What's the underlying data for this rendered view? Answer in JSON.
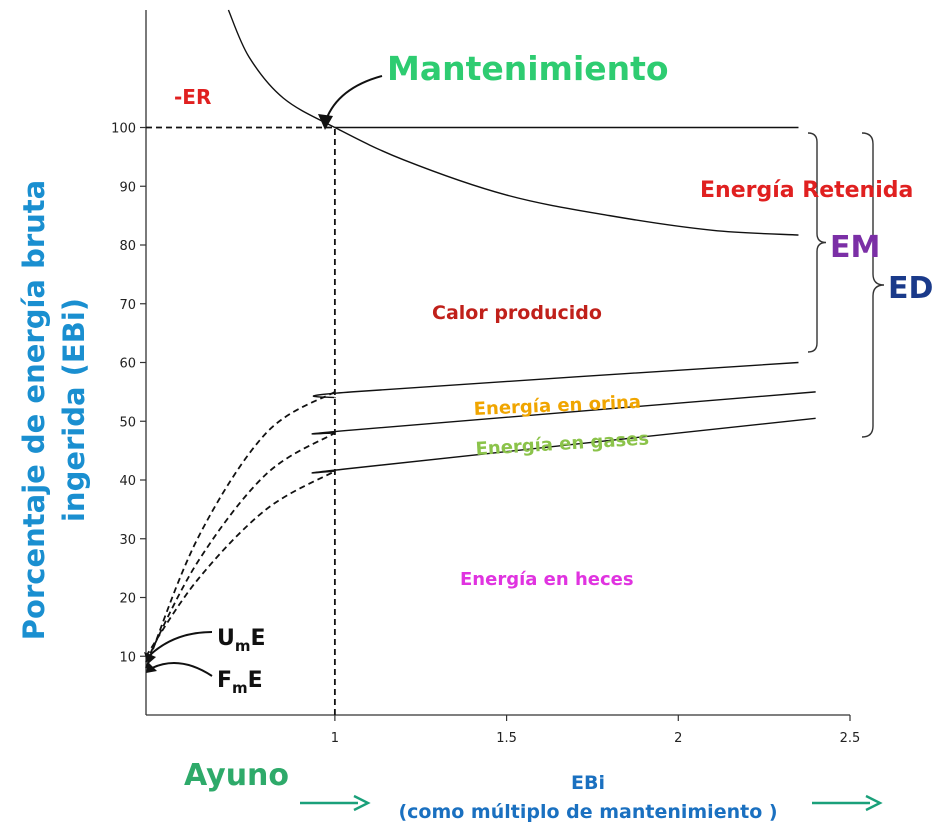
{
  "chart_data": {
    "type": "line",
    "title": "",
    "ylabel_line1": "Porcentaje de energía bruta",
    "ylabel_line2": "ingerida (EBi)",
    "xlabel_line1": "EBi",
    "xlabel_line2": "(como múltiplo de mantenimiento )",
    "xlim": [
      0.45,
      2.5
    ],
    "ylim": [
      0,
      120
    ],
    "x_ticks": [
      1,
      1.5,
      2,
      2.5
    ],
    "x_tick_labels": [
      "1",
      "1.5",
      "2",
      "2.5"
    ],
    "y_ticks": [
      10,
      20,
      30,
      40,
      50,
      60,
      70,
      80,
      90,
      100
    ],
    "y_tick_labels": [
      "10",
      "20",
      "30",
      "40",
      "50",
      "60",
      "70",
      "80",
      "90",
      "100"
    ],
    "grid": false,
    "series": [
      {
        "style": "solid",
        "x": [
          0.69,
          0.75,
          0.85,
          1.0,
          1.2,
          1.5,
          1.8,
          2.1,
          2.35
        ],
        "y": [
          120,
          112,
          105,
          100,
          94.5,
          88.5,
          85,
          82.5,
          81.7
        ]
      },
      {
        "style": "solid",
        "x": [
          1.0,
          2.35
        ],
        "y": [
          100,
          100
        ]
      },
      {
        "style": "solid",
        "x": [
          1.0,
          1.05,
          2.35
        ],
        "y": [
          54,
          55,
          60
        ]
      },
      {
        "style": "solid",
        "x": [
          1.0,
          1.05,
          2.4
        ],
        "y": [
          48,
          48.5,
          55
        ]
      },
      {
        "style": "solid",
        "x": [
          1.0,
          1.05,
          2.4
        ],
        "y": [
          41.5,
          42,
          50.5
        ]
      },
      {
        "style": "dashed",
        "x": [
          0.45,
          0.6,
          0.8,
          1.0
        ],
        "y": [
          8,
          30,
          48,
          55
        ]
      },
      {
        "style": "dashed",
        "x": [
          0.45,
          0.6,
          0.8,
          1.0
        ],
        "y": [
          9,
          26,
          41,
          48
        ]
      },
      {
        "style": "dashed",
        "x": [
          0.45,
          0.6,
          0.8,
          1.0
        ],
        "y": [
          10,
          23,
          35,
          41.5
        ]
      },
      {
        "style": "dashed",
        "x": [
          0.45,
          1.0
        ],
        "y": [
          100,
          100
        ]
      },
      {
        "style": "dashed",
        "x": [
          1.0,
          1.0
        ],
        "y": [
          0,
          100
        ]
      }
    ],
    "annotations": {
      "mantenimiento": "Mantenimiento",
      "er": "-ER",
      "energia_retenida": "Energía Retenida",
      "calor": "Calor producido",
      "orina": "Energía en orina",
      "gases": "Energía en gases",
      "heces": "Energía en heces",
      "em": "EM",
      "ed": "ED",
      "ume_main": "U",
      "ume_sub": "m",
      "ume_end": "E",
      "fme_main": "F",
      "fme_sub": "m",
      "fme_end": "E",
      "ayuno": "Ayuno"
    },
    "colors": {
      "mantenimiento": "#2ecc71",
      "red": "#e02020",
      "calor": "#c0201a",
      "orina": "#f0a500",
      "gases": "#8bc34a",
      "heces": "#e033e0",
      "em": "#7b2fa6",
      "ed": "#1a3a8a",
      "ylabel": "#1a8fd0",
      "xlabel": "#1a70c0",
      "ayuno": "#2eaa6a",
      "arrow": "#1aa07a",
      "axis": "#333333"
    }
  }
}
